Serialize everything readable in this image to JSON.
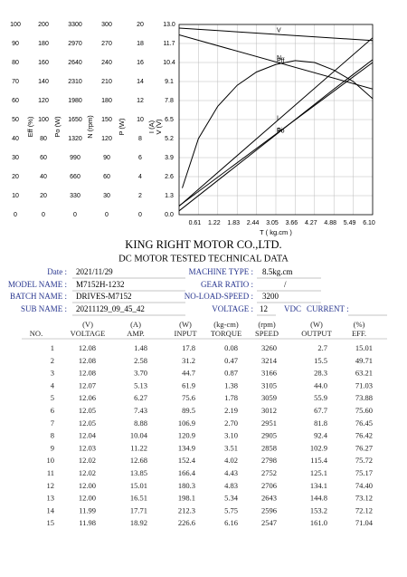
{
  "chart_data": {
    "type": "line",
    "color": "#000000",
    "grid": true,
    "x_label": "T ( kg.cm )",
    "xlim": [
      0,
      6.1
    ],
    "xticks": [
      0.61,
      1.22,
      1.83,
      2.44,
      3.05,
      3.66,
      4.27,
      4.88,
      5.49,
      {
        "value": 6.1,
        "label": "6.10"
      }
    ],
    "axes": [
      {
        "label": "Eff (%)",
        "lim": [
          0,
          100
        ],
        "ticks": [
          0,
          10,
          20,
          30,
          40,
          50,
          60,
          70,
          80,
          90,
          100
        ]
      },
      {
        "label": "Po (W)",
        "lim": [
          0,
          200
        ],
        "ticks": [
          0,
          20,
          40,
          60,
          80,
          100,
          120,
          140,
          160,
          180,
          200
        ]
      },
      {
        "label": "N (rpm)",
        "lim": [
          0,
          3300
        ],
        "ticks": [
          0,
          330,
          660,
          990,
          1320,
          1650,
          1980,
          2310,
          2640,
          2970,
          3300
        ]
      },
      {
        "label": "P (W)",
        "lim": [
          0,
          300
        ],
        "ticks": [
          0,
          30,
          60,
          90,
          120,
          150,
          180,
          210,
          240,
          270,
          300
        ]
      },
      {
        "label": "I (A)",
        "lim": [
          0,
          20
        ],
        "ticks": [
          0,
          2,
          4,
          6,
          8,
          10,
          12,
          14,
          16,
          18,
          20
        ]
      },
      {
        "label": "V (V)",
        "lim": [
          0,
          13
        ],
        "ticks": [
          {
            "value": 0,
            "label": "0.0"
          },
          1.3,
          2.6,
          3.9,
          5.2,
          6.5,
          7.8,
          9.1,
          10.4,
          11.7,
          {
            "value": 13,
            "label": "13.0"
          }
        ]
      }
    ],
    "series": [
      {
        "name": "V",
        "axis": 5,
        "x": [
          0,
          6.1
        ],
        "values": [
          12.75,
          11.9
        ]
      },
      {
        "name": "N",
        "axis": 2,
        "x": [
          0,
          6.1
        ],
        "values": [
          3120,
          2180
        ]
      },
      {
        "name": "Eff",
        "axis": 0,
        "x": [
          0.1,
          0.61,
          1.22,
          1.83,
          2.44,
          3.05,
          3.66,
          4.27,
          4.88,
          5.49,
          6.1
        ],
        "values": [
          14,
          40,
          57,
          68,
          75,
          79,
          81,
          80,
          76,
          70,
          61
        ]
      },
      {
        "name": "I",
        "axis": 4,
        "x": [
          0,
          6.1
        ],
        "values": [
          0.9,
          18.6
        ]
      },
      {
        "name": "Po",
        "axis": 1,
        "x": [
          0,
          1.22,
          2.44,
          3.66,
          4.88,
          6.1
        ],
        "values": [
          4,
          36,
          68,
          100,
          132,
          163
        ]
      },
      {
        "name": "Pi",
        "axis": 3,
        "x": [
          0,
          6.1
        ],
        "values": [
          14,
          240
        ]
      }
    ]
  },
  "header": {
    "company": "KING RIGHT MOTOR CO.,LTD.",
    "subtitle": "DC MOTOR TESTED TECHNICAL DATA"
  },
  "info": {
    "left": [
      {
        "label": "Date :",
        "value": "2021/11/29"
      },
      {
        "label": "MODEL NAME :",
        "value": "M7152H-1232"
      },
      {
        "label": "BATCH NAME :",
        "value": "DRIVES-M7152"
      },
      {
        "label": "SUB NAME :",
        "value": "20211129_09_45_42"
      }
    ],
    "right": [
      {
        "label": "MACHINE TYPE :",
        "value": "8.5kg.cm"
      },
      {
        "label": "GEAR RATIO :",
        "value": "/"
      },
      {
        "label": "NO-LOAD-SPEED :",
        "value": "3200"
      },
      {
        "label": "VOLTAGE :",
        "value": "12"
      }
    ],
    "voltage_unit": "VDC",
    "current_label": "CURRENT :"
  },
  "table": {
    "columns": [
      {
        "name": "NO."
      },
      {
        "unit": "(V)",
        "name": "VOLTAGE"
      },
      {
        "unit": "(A)",
        "name": "AMP."
      },
      {
        "unit": "(W)",
        "name": "INPUT"
      },
      {
        "unit": "(kg-cm)",
        "name": "TORQUE"
      },
      {
        "unit": "(rpm)",
        "name": "SPEED"
      },
      {
        "unit": "(W)",
        "name": "OUTPUT"
      },
      {
        "unit": "(%)",
        "name": "EFF."
      }
    ],
    "rows": [
      [
        "1",
        "12.08",
        "1.48",
        "17.8",
        "0.08",
        "3260",
        "2.7",
        "15.01"
      ],
      [
        "2",
        "12.08",
        "2.58",
        "31.2",
        "0.47",
        "3214",
        "15.5",
        "49.71"
      ],
      [
        "3",
        "12.08",
        "3.70",
        "44.7",
        "0.87",
        "3166",
        "28.3",
        "63.21"
      ],
      [
        "4",
        "12.07",
        "5.13",
        "61.9",
        "1.38",
        "3105",
        "44.0",
        "71.03"
      ],
      [
        "5",
        "12.06",
        "6.27",
        "75.6",
        "1.78",
        "3059",
        "55.9",
        "73.88"
      ],
      [
        "6",
        "12.05",
        "7.43",
        "89.5",
        "2.19",
        "3012",
        "67.7",
        "75.60"
      ],
      [
        "7",
        "12.05",
        "8.88",
        "106.9",
        "2.70",
        "2951",
        "81.8",
        "76.45"
      ],
      [
        "8",
        "12.04",
        "10.04",
        "120.9",
        "3.10",
        "2905",
        "92.4",
        "76.42"
      ],
      [
        "9",
        "12.03",
        "11.22",
        "134.9",
        "3.51",
        "2858",
        "102.9",
        "76.27"
      ],
      [
        "10",
        "12.02",
        "12.68",
        "152.4",
        "4.02",
        "2798",
        "115.4",
        "75.72"
      ],
      [
        "11",
        "12.02",
        "13.85",
        "166.4",
        "4.43",
        "2752",
        "125.1",
        "75.17"
      ],
      [
        "12",
        "12.00",
        "15.01",
        "180.3",
        "4.83",
        "2706",
        "134.1",
        "74.40"
      ],
      [
        "13",
        "12.00",
        "16.51",
        "198.1",
        "5.34",
        "2643",
        "144.8",
        "73.12"
      ],
      [
        "14",
        "11.99",
        "17.71",
        "212.3",
        "5.75",
        "2596",
        "153.2",
        "72.12"
      ],
      [
        "15",
        "11.98",
        "18.92",
        "226.6",
        "6.16",
        "2547",
        "161.0",
        "71.04"
      ]
    ]
  }
}
